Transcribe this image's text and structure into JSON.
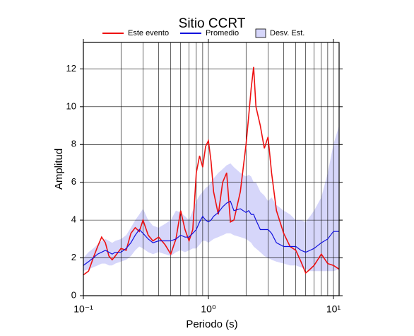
{
  "chart_data": {
    "type": "line",
    "title": "Sitio CCRT",
    "xlabel": "Periodo (s)",
    "ylabel": "Amplitud",
    "log_x": true,
    "grid": true,
    "xlim": [
      0.1,
      11.1
    ],
    "ylim": [
      0,
      13.4
    ],
    "xticks": [
      {
        "value": 0.1,
        "label": "10⁻¹"
      },
      {
        "value": 1,
        "label": "10⁰"
      },
      {
        "value": 10,
        "label": "10¹"
      }
    ],
    "xgrid": [
      0.2,
      0.3,
      0.4,
      0.5,
      0.6,
      0.7,
      0.8,
      0.9,
      2,
      3,
      4,
      5,
      6,
      7,
      8,
      9
    ],
    "yticks": [
      0,
      2,
      4,
      6,
      8,
      10,
      12
    ],
    "x": [
      0.1,
      0.11,
      0.12,
      0.13,
      0.14,
      0.15,
      0.16,
      0.17,
      0.18,
      0.2,
      0.22,
      0.24,
      0.26,
      0.28,
      0.3,
      0.33,
      0.36,
      0.4,
      0.45,
      0.5,
      0.55,
      0.6,
      0.65,
      0.7,
      0.75,
      0.8,
      0.85,
      0.9,
      0.95,
      1.0,
      1.05,
      1.1,
      1.2,
      1.3,
      1.4,
      1.5,
      1.6,
      1.8,
      2.0,
      2.1,
      2.2,
      2.3,
      2.4,
      2.6,
      2.8,
      3.0,
      3.2,
      3.5,
      4.0,
      4.5,
      5.0,
      5.5,
      6.0,
      6.5,
      7.0,
      8.0,
      9.0,
      10,
      11.1
    ],
    "series": [
      {
        "name": "Este evento",
        "color": "#ee1111",
        "values": [
          1.1,
          1.3,
          2.0,
          2.6,
          3.1,
          2.8,
          2.1,
          1.9,
          2.1,
          2.5,
          2.4,
          3.3,
          3.6,
          3.4,
          4.0,
          3.2,
          2.9,
          3.1,
          2.7,
          2.2,
          3.0,
          4.5,
          3.5,
          2.9,
          3.5,
          6.5,
          7.4,
          6.8,
          7.9,
          8.2,
          7.1,
          5.5,
          4.3,
          6.0,
          6.5,
          3.9,
          4.0,
          5.5,
          8.0,
          9.5,
          11.0,
          12.1,
          10.0,
          9.0,
          7.8,
          8.4,
          6.5,
          4.5,
          3.3,
          2.6,
          2.4,
          1.8,
          1.2,
          1.4,
          1.6,
          2.2,
          1.7,
          1.6,
          1.4
        ]
      },
      {
        "name": "Promedio",
        "color": "#1111dd",
        "values": [
          1.6,
          1.8,
          2.0,
          2.2,
          2.3,
          2.4,
          2.3,
          2.2,
          2.3,
          2.3,
          2.5,
          2.8,
          3.2,
          3.5,
          3.3,
          3.0,
          2.8,
          2.9,
          2.9,
          2.9,
          3.0,
          3.2,
          3.1,
          3.1,
          3.3,
          3.5,
          3.9,
          4.2,
          4.0,
          3.9,
          4.0,
          4.2,
          4.4,
          4.7,
          4.9,
          5.0,
          4.5,
          4.6,
          4.4,
          4.5,
          4.3,
          4.3,
          4.0,
          3.5,
          3.5,
          3.5,
          3.3,
          2.8,
          2.6,
          2.6,
          2.6,
          2.4,
          2.3,
          2.4,
          2.5,
          2.8,
          3.0,
          3.4,
          3.4
        ]
      }
    ],
    "band": {
      "name": "Desv. Est.",
      "color": "#d6d6fa",
      "upper": [
        2.0,
        2.3,
        2.5,
        2.7,
        2.9,
        3.0,
        2.9,
        2.8,
        2.9,
        3.0,
        3.2,
        3.6,
        4.0,
        4.3,
        4.6,
        4.0,
        3.7,
        3.6,
        3.8,
        4.0,
        4.5,
        4.4,
        4.2,
        4.0,
        4.5,
        5.0,
        5.3,
        5.5,
        5.7,
        5.8,
        6.0,
        6.2,
        6.5,
        6.7,
        6.9,
        7.0,
        6.8,
        6.5,
        6.3,
        6.4,
        6.3,
        6.0,
        6.0,
        5.5,
        5.3,
        5.0,
        5.2,
        4.8,
        4.5,
        4.3,
        4.0,
        4.0,
        3.9,
        4.2,
        4.5,
        5.2,
        6.5,
        8.0,
        9.0
      ],
      "lower": [
        1.3,
        1.4,
        1.5,
        1.6,
        1.7,
        1.7,
        1.6,
        1.6,
        1.7,
        1.8,
        1.9,
        2.1,
        2.4,
        2.6,
        2.5,
        2.3,
        2.2,
        2.3,
        2.2,
        2.1,
        2.3,
        2.4,
        2.3,
        2.4,
        2.5,
        2.5,
        2.7,
        2.9,
        2.9,
        2.8,
        2.9,
        3.0,
        3.1,
        3.2,
        3.3,
        3.3,
        3.2,
        3.1,
        3.0,
        2.9,
        2.8,
        2.6,
        2.5,
        2.3,
        2.1,
        2.0,
        1.9,
        1.8,
        1.7,
        1.6,
        1.6,
        1.5,
        1.4,
        1.3,
        1.3,
        1.3,
        1.3,
        1.3,
        1.4
      ]
    }
  }
}
